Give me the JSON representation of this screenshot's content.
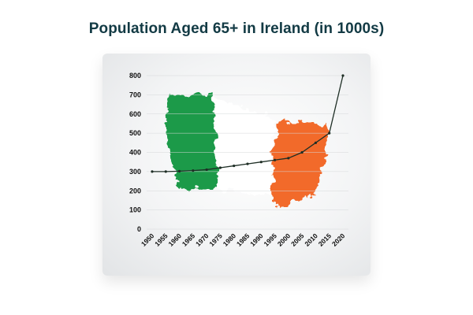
{
  "chart_data": {
    "type": "line",
    "title": "Population Aged 65+ in Ireland (in 1000s)",
    "x": [
      1950,
      1955,
      1960,
      1965,
      1970,
      1975,
      1980,
      1985,
      1990,
      1995,
      2000,
      2005,
      2010,
      2015,
      2020
    ],
    "series": [
      {
        "values": [
          300,
          300,
          302,
          305,
          310,
          320,
          330,
          340,
          350,
          360,
          370,
          400,
          450,
          500,
          800
        ]
      }
    ],
    "ylim": [
      0,
      800
    ],
    "yticks": [
      0,
      100,
      200,
      300,
      400,
      500,
      600,
      700,
      800
    ],
    "xlabel": "",
    "ylabel": "",
    "grid": true,
    "colors": {
      "line": "#1e2e25",
      "flag_green": "#1f9a4a",
      "flag_orange": "#f26a2a",
      "grid": "#d6d8da"
    }
  }
}
